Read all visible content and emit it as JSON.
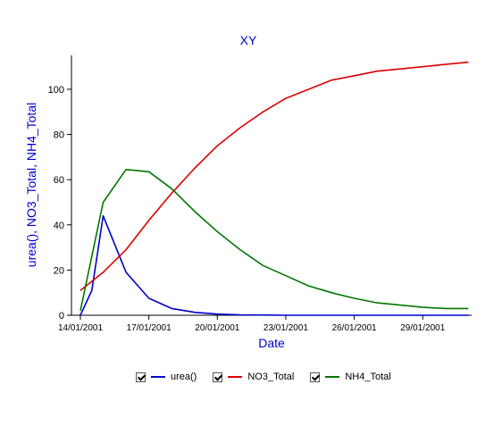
{
  "chart_data": {
    "type": "line",
    "title": "XY",
    "xlabel": "Date",
    "ylabel": "urea(), NO3_Total, NH4_Total",
    "x": [
      "14/01/2001",
      "15/01/2001",
      "16/01/2001",
      "17/01/2001",
      "18/01/2001",
      "19/01/2001",
      "20/01/2001",
      "21/01/2001",
      "22/01/2001",
      "23/01/2001",
      "24/01/2001",
      "25/01/2001",
      "26/01/2001",
      "27/01/2001",
      "28/01/2001",
      "29/01/2001",
      "30/01/2001",
      "31/01/2001"
    ],
    "x_ticks": [
      "14/01/2001",
      "17/01/2001",
      "20/01/2001",
      "23/01/2001",
      "26/01/2001",
      "29/01/2001"
    ],
    "y_ticks": [
      0,
      20,
      40,
      60,
      80,
      100
    ],
    "ylim": [
      0,
      115
    ],
    "grid": false,
    "legend_position": "bottom",
    "series": [
      {
        "name": "urea()",
        "color": "#0000cc",
        "points": [
          [
            "14/01/2001",
            0
          ],
          [
            "14/01/2001T12",
            11
          ],
          [
            "15/01/2001",
            44
          ],
          [
            "16/01/2001",
            19
          ],
          [
            "17/01/2001",
            7.5
          ],
          [
            "18/01/2001",
            3
          ],
          [
            "19/01/2001",
            1.3
          ],
          [
            "20/01/2001",
            0.5
          ],
          [
            "21/01/2001",
            0.2
          ],
          [
            "22/01/2001",
            0.1
          ],
          [
            "23/01/2001",
            0
          ],
          [
            "24/01/2001",
            0
          ],
          [
            "25/01/2001",
            0
          ],
          [
            "26/01/2001",
            0
          ],
          [
            "27/01/2001",
            0
          ],
          [
            "28/01/2001",
            0
          ],
          [
            "29/01/2001",
            0
          ],
          [
            "30/01/2001",
            0
          ],
          [
            "31/01/2001",
            0
          ]
        ]
      },
      {
        "name": "NO3_Total",
        "color": "#dd0000",
        "points": [
          [
            "14/01/2001",
            11
          ],
          [
            "15/01/2001",
            19
          ],
          [
            "16/01/2001",
            29
          ],
          [
            "17/01/2001",
            42
          ],
          [
            "18/01/2001",
            54
          ],
          [
            "19/01/2001",
            65
          ],
          [
            "20/01/2001",
            75
          ],
          [
            "21/01/2001",
            83
          ],
          [
            "22/01/2001",
            90
          ],
          [
            "23/01/2001",
            96
          ],
          [
            "24/01/2001",
            100
          ],
          [
            "25/01/2001",
            104
          ],
          [
            "26/01/2001",
            106
          ],
          [
            "27/01/2001",
            108
          ],
          [
            "28/01/2001",
            109
          ],
          [
            "29/01/2001",
            110
          ],
          [
            "30/01/2001",
            111
          ],
          [
            "31/01/2001",
            112
          ]
        ]
      },
      {
        "name": "NH4_Total",
        "color": "#007700",
        "points": [
          [
            "14/01/2001",
            2
          ],
          [
            "15/01/2001",
            50
          ],
          [
            "16/01/2001",
            64.5
          ],
          [
            "16/01/2001T12",
            64
          ],
          [
            "17/01/2001",
            63.5
          ],
          [
            "18/01/2001",
            56
          ],
          [
            "19/01/2001",
            46
          ],
          [
            "20/01/2001",
            37
          ],
          [
            "21/01/2001",
            29
          ],
          [
            "22/01/2001",
            22
          ],
          [
            "23/01/2001",
            17.5
          ],
          [
            "24/01/2001",
            13
          ],
          [
            "25/01/2001",
            10
          ],
          [
            "26/01/2001",
            7.5
          ],
          [
            "27/01/2001",
            5.5
          ],
          [
            "28/01/2001",
            4.5
          ],
          [
            "29/01/2001",
            3.5
          ],
          [
            "30/01/2001",
            3
          ],
          [
            "31/01/2001",
            3
          ]
        ]
      }
    ],
    "colors": {
      "title": "#0000cc",
      "axis_label": "#0000cc",
      "tick": "#000000"
    }
  },
  "legend": {
    "items": [
      {
        "label": "urea()",
        "color": "#0000cc"
      },
      {
        "label": "NO3_Total",
        "color": "#dd0000"
      },
      {
        "label": "NH4_Total",
        "color": "#007700"
      }
    ]
  }
}
